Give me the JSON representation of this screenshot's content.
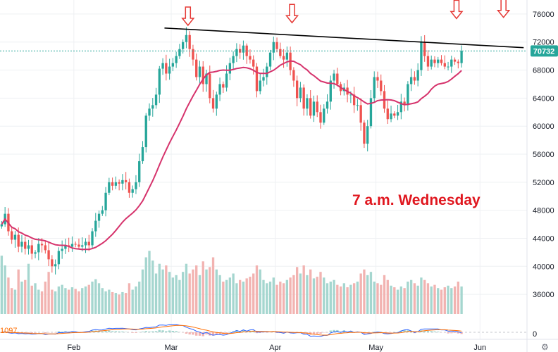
{
  "chart_data": {
    "type": "candlestick",
    "title": "",
    "y_ticks": [
      36000,
      40000,
      44000,
      48000,
      52000,
      56000,
      60000,
      64000,
      68000,
      72000,
      76000
    ],
    "y_tick_labels": [
      "36000",
      "40000",
      "44000",
      "48000",
      "52000",
      "56000",
      "60000",
      "64000",
      "68000",
      "72000",
      "76000"
    ],
    "ylim": [
      33000,
      78000
    ],
    "x_labels": [
      "Feb",
      "Mar",
      "Apr",
      "May",
      "Jun"
    ],
    "x_label_days": [
      0,
      29,
      60,
      90,
      121
    ],
    "x_range_days": [
      -22,
      135
    ],
    "last_price": 70732,
    "last_price_label": "70732",
    "moving_average_period": 20,
    "grid": true,
    "colors": {
      "up": "#26a69a",
      "down": "#ef5350",
      "up_volume": "#a5d6cf",
      "down_volume": "#f2b3b1",
      "moving_average": "#d6336c",
      "trendline": "#000000",
      "arrows": "#e53935",
      "annotation": "#e0171f",
      "price_badge": "#26a69a",
      "macd_line": "#2962ff",
      "signal_line": "#ff6d00"
    },
    "series": [
      {
        "name": "",
        "type": "candlestick",
        "closes": [
          46000,
          47500,
          45000,
          43800,
          44500,
          42800,
          43500,
          42500,
          43000,
          41800,
          42000,
          43200,
          43000,
          42300,
          41000,
          40000,
          40300,
          42200,
          42500,
          43000,
          42800,
          43200,
          43100,
          42800,
          43000,
          43500,
          43000,
          45000,
          46500,
          47500,
          48000,
          50500,
          52000,
          51500,
          52000,
          51800,
          52300,
          52000,
          50500,
          51000,
          52000,
          55000,
          57000,
          61500,
          62500,
          63000,
          64500,
          68200,
          69000,
          67500,
          68500,
          69000,
          70000,
          71000,
          72000,
          73000,
          71000,
          69500,
          67000,
          68500,
          66000,
          67500,
          64000,
          62500,
          64500,
          66000,
          65500,
          67500,
          69000,
          70000,
          71000,
          70500,
          71500,
          70000,
          69500,
          68500,
          65000,
          66500,
          67000,
          68500,
          70500,
          72000,
          71000,
          70000,
          69500,
          70500,
          68000,
          66500,
          64000,
          65500,
          62500,
          64000,
          61500,
          63500,
          62000,
          60500,
          62500,
          63500,
          66500,
          67500,
          66000,
          65000,
          65500,
          64500,
          64500,
          63000,
          63000,
          60500,
          57500,
          60000,
          64000,
          67000,
          66500,
          65000,
          62500,
          61000,
          61800,
          61500,
          62000,
          63500,
          63000,
          66000,
          67000,
          66500,
          68000,
          72000,
          70000,
          68500,
          69500,
          69000,
          69500,
          69000,
          68500,
          68500,
          69500,
          69200,
          69000,
          70732
        ]
      },
      {
        "name": "",
        "type": "volume",
        "relative_values": [
          0.72,
          0.6,
          0.45,
          0.32,
          0.3,
          0.55,
          0.4,
          0.42,
          0.62,
          0.35,
          0.38,
          0.3,
          0.28,
          0.4,
          0.52,
          0.3,
          0.28,
          0.34,
          0.36,
          0.32,
          0.3,
          0.33,
          0.31,
          0.28,
          0.32,
          0.34,
          0.36,
          0.4,
          0.43,
          0.38,
          0.32,
          0.28,
          0.3,
          0.27,
          0.26,
          0.24,
          0.27,
          0.26,
          0.38,
          0.3,
          0.34,
          0.4,
          0.55,
          0.7,
          0.78,
          0.66,
          0.5,
          0.62,
          0.55,
          0.6,
          0.52,
          0.45,
          0.48,
          0.42,
          0.52,
          0.62,
          0.5,
          0.55,
          0.6,
          0.48,
          0.65,
          0.55,
          0.58,
          0.7,
          0.55,
          0.48,
          0.4,
          0.42,
          0.45,
          0.5,
          0.38,
          0.42,
          0.4,
          0.44,
          0.46,
          0.5,
          0.6,
          0.55,
          0.42,
          0.38,
          0.4,
          0.45,
          0.36,
          0.4,
          0.38,
          0.42,
          0.45,
          0.48,
          0.58,
          0.5,
          0.6,
          0.48,
          0.55,
          0.44,
          0.46,
          0.52,
          0.45,
          0.38,
          0.4,
          0.42,
          0.36,
          0.34,
          0.38,
          0.33,
          0.36,
          0.38,
          0.4,
          0.5,
          0.55,
          0.48,
          0.52,
          0.4,
          0.38,
          0.36,
          0.48,
          0.42,
          0.35,
          0.33,
          0.3,
          0.34,
          0.32,
          0.4,
          0.42,
          0.38,
          0.35,
          0.45,
          0.42,
          0.38,
          0.34,
          0.36,
          0.32,
          0.3,
          0.33,
          0.35,
          0.32,
          0.34,
          0.4,
          0.34
        ]
      }
    ],
    "trendline": {
      "start": {
        "day": 27,
        "price": 74000
      },
      "end": {
        "day": 134,
        "price": 71200
      }
    },
    "arrow_days": [
      34,
      65,
      114,
      128
    ],
    "oscillator": {
      "label": "1097",
      "zero_label": "0"
    },
    "annotation": "7 a.m. Wednesday"
  }
}
